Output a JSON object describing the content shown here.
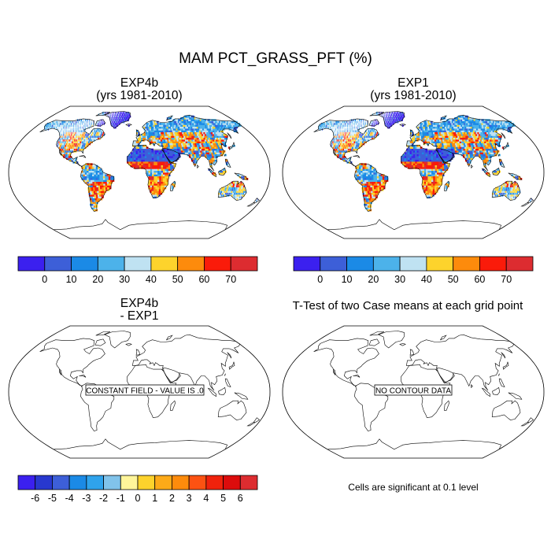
{
  "title": "MAM PCT_GRASS_PFT (%)",
  "panels": {
    "top_left": {
      "title_line1": "EXP4b",
      "title_line2": "(yrs 1981-2010)"
    },
    "top_right": {
      "title_line1": "EXP1",
      "title_line2": "(yrs 1981-2010)"
    },
    "bottom_left": {
      "title_line1": "EXP4b",
      "title_line2": " - EXP1",
      "message": "CONSTANT FIELD - VALUE IS .0"
    },
    "bottom_right": {
      "title": "T-Test of two Case means at each grid point",
      "message": "NO CONTOUR DATA"
    }
  },
  "significance_note": "Cells are significant at 0.1 level",
  "colorbars": {
    "main": {
      "labels": [
        "0",
        "10",
        "20",
        "30",
        "40",
        "50",
        "60",
        "70"
      ],
      "colors": [
        "#3b20ef",
        "#3d5fd8",
        "#1b8ae6",
        "#4cb2ea",
        "#bfe2f2",
        "#fdd32c",
        "#fd8b0c",
        "#fa1b0a",
        "#dd2c30"
      ]
    },
    "diff": {
      "labels": [
        "-6",
        "-5",
        "-4",
        "-3",
        "-2",
        "-1",
        "0",
        "1",
        "2",
        "3",
        "4",
        "5",
        "6"
      ],
      "colors": [
        "#3b20ef",
        "#2838cf",
        "#3d5fd8",
        "#1b8ae6",
        "#2fa3ec",
        "#81c3ea",
        "#fff59a",
        "#fdd32c",
        "#fdaa18",
        "#fd8b0c",
        "#fc5212",
        "#f0220c",
        "#dc0c0c",
        "#dd2c30"
      ]
    }
  },
  "map_palette": {
    "ocean": "#ffffff",
    "coast": "#000000",
    "low": "#3d5fd8",
    "mid_low": "#4cb2ea",
    "mid": "#bfe2f2",
    "mid_high": "#fdd32c",
    "high": "#fd8b0c",
    "max": "#fa1b0a"
  }
}
